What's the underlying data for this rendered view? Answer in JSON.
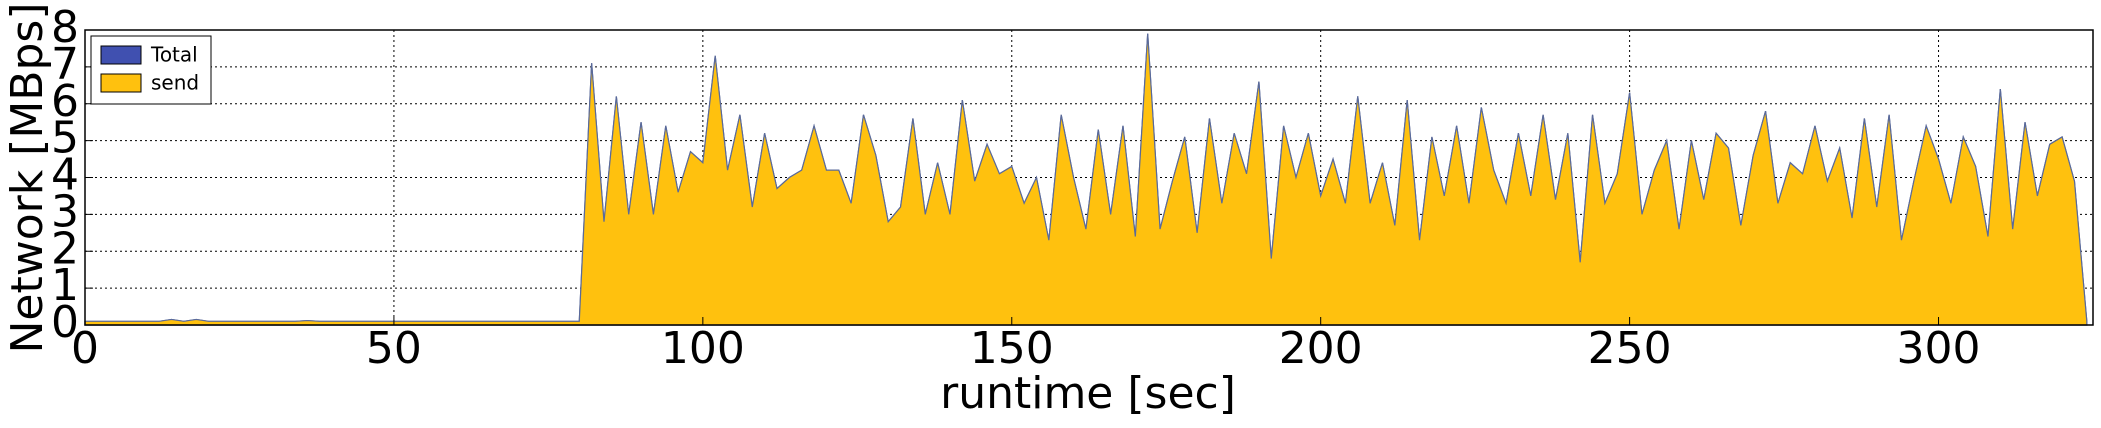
{
  "chart_data": {
    "type": "area",
    "xlabel": "runtime [sec]",
    "ylabel": "Network [MBps]",
    "x": [
      0,
      2,
      4,
      6,
      8,
      10,
      12,
      14,
      16,
      18,
      20,
      22,
      24,
      26,
      28,
      30,
      32,
      34,
      36,
      38,
      40,
      42,
      44,
      46,
      48,
      50,
      52,
      54,
      56,
      58,
      60,
      62,
      64,
      66,
      68,
      70,
      72,
      74,
      76,
      78,
      80,
      82,
      84,
      86,
      88,
      90,
      92,
      94,
      96,
      98,
      100,
      102,
      104,
      106,
      108,
      110,
      112,
      114,
      116,
      118,
      120,
      122,
      124,
      126,
      128,
      130,
      132,
      134,
      136,
      138,
      140,
      142,
      144,
      146,
      148,
      150,
      152,
      154,
      156,
      158,
      160,
      162,
      164,
      166,
      168,
      170,
      172,
      174,
      176,
      178,
      180,
      182,
      184,
      186,
      188,
      190,
      192,
      194,
      196,
      198,
      200,
      202,
      204,
      206,
      208,
      210,
      212,
      214,
      216,
      218,
      220,
      222,
      224,
      226,
      228,
      230,
      232,
      234,
      236,
      238,
      240,
      242,
      244,
      246,
      248,
      250,
      252,
      254,
      256,
      258,
      260,
      262,
      264,
      266,
      268,
      270,
      272,
      274,
      276,
      278,
      280,
      282,
      284,
      286,
      288,
      290,
      292,
      294,
      296,
      298,
      300,
      302,
      304,
      306,
      308,
      310,
      312,
      314,
      316,
      318,
      320,
      322,
      324
    ],
    "series": [
      {
        "name": "Total",
        "color": "#4050b0",
        "values": [
          0.1,
          0.1,
          0.1,
          0.1,
          0.1,
          0.1,
          0.1,
          0.15,
          0.1,
          0.15,
          0.1,
          0.1,
          0.1,
          0.1,
          0.1,
          0.1,
          0.1,
          0.1,
          0.12,
          0.1,
          0.1,
          0.1,
          0.1,
          0.1,
          0.1,
          0.1,
          0.1,
          0.1,
          0.1,
          0.1,
          0.1,
          0.1,
          0.1,
          0.1,
          0.1,
          0.1,
          0.1,
          0.1,
          0.1,
          0.1,
          0.1,
          7.1,
          2.8,
          6.2,
          3.0,
          5.5,
          3.0,
          5.4,
          3.6,
          4.7,
          4.4,
          7.3,
          4.2,
          5.7,
          3.2,
          5.2,
          3.7,
          4.0,
          4.2,
          5.4,
          4.2,
          4.2,
          3.3,
          5.7,
          4.6,
          2.8,
          3.2,
          5.6,
          3.0,
          4.4,
          3.0,
          6.1,
          3.9,
          4.9,
          4.1,
          4.3,
          3.3,
          4.0,
          2.3,
          5.7,
          4.0,
          2.6,
          5.3,
          3.0,
          5.4,
          2.4,
          7.9,
          2.6,
          3.9,
          5.1,
          2.5,
          5.6,
          3.3,
          5.2,
          4.1,
          6.6,
          1.8,
          5.4,
          4.0,
          5.2,
          3.5,
          4.5,
          3.3,
          6.2,
          3.3,
          4.4,
          2.7,
          6.1,
          2.3,
          5.1,
          3.5,
          5.4,
          3.3,
          5.9,
          4.2,
          3.3,
          5.2,
          3.5,
          5.7,
          3.4,
          5.2,
          1.7,
          5.7,
          3.3,
          4.1,
          6.3,
          3.0,
          4.2,
          5.0,
          2.6,
          5.0,
          3.4,
          5.2,
          4.8,
          2.7,
          4.6,
          5.8,
          3.3,
          4.4,
          4.1,
          5.4,
          3.9,
          4.8,
          2.9,
          5.6,
          3.2,
          5.7,
          2.3,
          3.9,
          5.4,
          4.5,
          3.3,
          5.1,
          4.3,
          2.4,
          6.4,
          2.6,
          5.5,
          3.5,
          4.9,
          5.1,
          3.9,
          0.1
        ]
      },
      {
        "name": "send",
        "color": "#ffc10e",
        "values": [
          0.1,
          0.1,
          0.1,
          0.1,
          0.1,
          0.1,
          0.1,
          0.15,
          0.1,
          0.15,
          0.1,
          0.1,
          0.1,
          0.1,
          0.1,
          0.1,
          0.1,
          0.1,
          0.12,
          0.1,
          0.1,
          0.1,
          0.1,
          0.1,
          0.1,
          0.1,
          0.1,
          0.1,
          0.1,
          0.1,
          0.1,
          0.1,
          0.1,
          0.1,
          0.1,
          0.1,
          0.1,
          0.1,
          0.1,
          0.1,
          0.1,
          7.1,
          2.8,
          6.2,
          3.0,
          5.5,
          3.0,
          5.4,
          3.6,
          4.7,
          4.4,
          7.3,
          4.2,
          5.7,
          3.2,
          5.2,
          3.7,
          4.0,
          4.2,
          5.4,
          4.2,
          4.2,
          3.3,
          5.7,
          4.6,
          2.8,
          3.2,
          5.6,
          3.0,
          4.4,
          3.0,
          6.1,
          3.9,
          4.9,
          4.1,
          4.3,
          3.3,
          4.0,
          2.3,
          5.7,
          4.0,
          2.6,
          5.3,
          3.0,
          5.4,
          2.4,
          7.9,
          2.6,
          3.9,
          5.1,
          2.5,
          5.6,
          3.3,
          5.2,
          4.1,
          6.6,
          1.8,
          5.4,
          4.0,
          5.2,
          3.5,
          4.5,
          3.3,
          6.2,
          3.3,
          4.4,
          2.7,
          6.1,
          2.3,
          5.1,
          3.5,
          5.4,
          3.3,
          5.9,
          4.2,
          3.3,
          5.2,
          3.5,
          5.7,
          3.4,
          5.2,
          1.7,
          5.7,
          3.3,
          4.1,
          6.3,
          3.0,
          4.2,
          5.0,
          2.6,
          5.0,
          3.4,
          5.2,
          4.8,
          2.7,
          4.6,
          5.8,
          3.3,
          4.4,
          4.1,
          5.4,
          3.9,
          4.8,
          2.9,
          5.6,
          3.2,
          5.7,
          2.3,
          3.9,
          5.4,
          4.5,
          3.3,
          5.1,
          4.3,
          2.4,
          6.4,
          2.6,
          5.5,
          3.5,
          4.9,
          5.1,
          3.9,
          0.1
        ]
      }
    ],
    "xlim": [
      0,
      325
    ],
    "xticks": [
      0,
      50,
      100,
      150,
      200,
      250,
      300
    ],
    "ylim": [
      0,
      8
    ],
    "yticks": [
      0,
      1,
      2,
      3,
      4,
      5,
      6,
      7,
      8
    ],
    "grid": true,
    "legend": "upper-left"
  }
}
